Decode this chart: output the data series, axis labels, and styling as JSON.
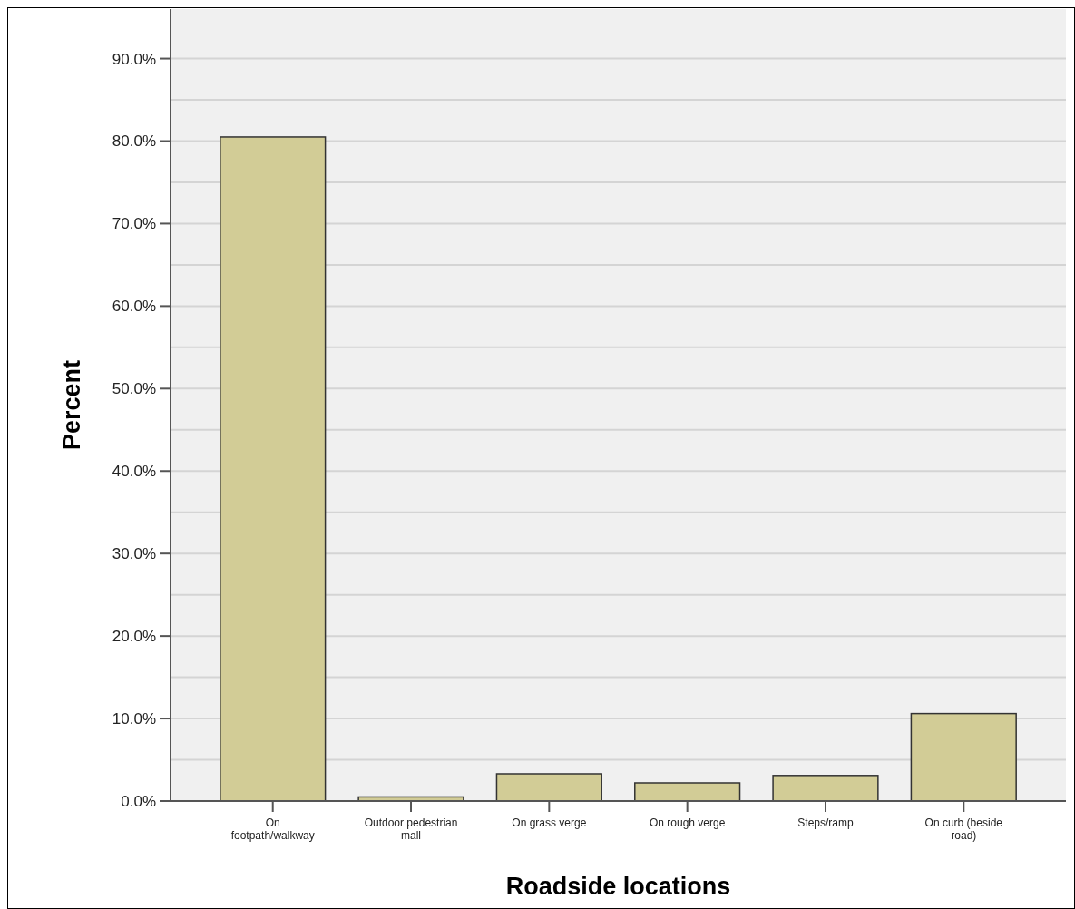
{
  "chart_data": {
    "type": "bar",
    "xlabel": "Roadside locations",
    "ylabel": "Percent",
    "categories": [
      "On footpath/walkway",
      "Outdoor pedestrian mall",
      "On grass verge",
      "On rough verge",
      "Steps/ramp",
      "On curb (beside road)"
    ],
    "values": [
      80.5,
      0.5,
      3.3,
      2.2,
      3.1,
      10.6
    ],
    "color": "#d2cc96",
    "ylim": [
      0,
      96
    ],
    "yticks": [
      {
        "value": 0,
        "label": "0.0%"
      },
      {
        "value": 5,
        "label": null
      },
      {
        "value": 10,
        "label": "10.0%"
      },
      {
        "value": 15,
        "label": null
      },
      {
        "value": 20,
        "label": "20.0%"
      },
      {
        "value": 25,
        "label": null
      },
      {
        "value": 30,
        "label": "30.0%"
      },
      {
        "value": 35,
        "label": null
      },
      {
        "value": 40,
        "label": "40.0%"
      },
      {
        "value": 45,
        "label": null
      },
      {
        "value": 50,
        "label": "50.0%"
      },
      {
        "value": 55,
        "label": null
      },
      {
        "value": 60,
        "label": "60.0%"
      },
      {
        "value": 65,
        "label": null
      },
      {
        "value": 70,
        "label": "70.0%"
      },
      {
        "value": 75,
        "label": null
      },
      {
        "value": 80,
        "label": "80.0%"
      },
      {
        "value": 85,
        "label": null
      },
      {
        "value": 90,
        "label": "90.0%"
      }
    ],
    "grid": "y"
  }
}
